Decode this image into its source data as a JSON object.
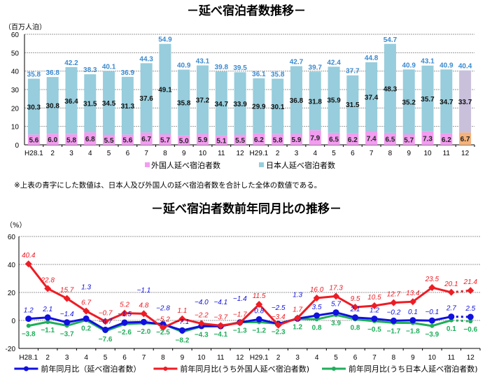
{
  "chart_data": [
    {
      "type": "bar",
      "stacked": true,
      "title": "－延べ宿泊者数推移－",
      "unit_label": "（百万人泊）",
      "ylim": [
        0,
        60
      ],
      "yticks": [
        0,
        10,
        20,
        30,
        40,
        50,
        60
      ],
      "grid": true,
      "legend_placement": "bottom",
      "categories": [
        "H28.1",
        "2",
        "3",
        "4",
        "5",
        "6",
        "7",
        "8",
        "9",
        "10",
        "11",
        "12",
        "H29.1",
        "2",
        "3",
        "4",
        "5",
        "6",
        "7",
        "8",
        "9",
        "10",
        "11",
        "12"
      ],
      "series": [
        {
          "name": "外国人延べ宿泊者数",
          "color": "#f39cf0",
          "values": [
            5.6,
            6.0,
            5.8,
            6.8,
            5.5,
            5.6,
            6.7,
            5.7,
            5.0,
            5.9,
            5.1,
            5.5,
            6.2,
            5.8,
            5.9,
            7.9,
            6.5,
            6.2,
            7.4,
            6.5,
            5.7,
            7.3,
            6.2,
            6.7
          ]
        },
        {
          "name": "日本人延べ宿泊者数",
          "color": "#97cddc",
          "values": [
            30.3,
            30.8,
            36.4,
            31.5,
            34.5,
            31.3,
            37.6,
            49.1,
            35.8,
            37.2,
            34.7,
            33.9,
            29.9,
            30.1,
            36.8,
            31.8,
            35.9,
            31.5,
            37.4,
            48.3,
            35.2,
            35.7,
            34.7,
            33.7
          ]
        }
      ],
      "totals": [
        35.8,
        36.8,
        42.2,
        38.3,
        40.1,
        36.9,
        44.3,
        54.9,
        40.9,
        43.1,
        39.8,
        39.5,
        36.1,
        35.8,
        42.7,
        39.7,
        42.4,
        37.7,
        44.8,
        54.7,
        40.9,
        43.1,
        40.9,
        40.4
      ],
      "total_label_color": "#3a8ad0",
      "last_bar_colors": {
        "foreign": "#f5b27a",
        "japanese": "#c9c0dc"
      },
      "note": "※上表の青字にした数値は、日本人及び外国人の延べ宿泊者数を合計した全体の数値である。"
    },
    {
      "type": "line",
      "title": "－延べ宿泊者数前年同月比の推移－",
      "unit_label": "（%）",
      "ylim": [
        -20,
        60
      ],
      "yticks": [
        -20,
        0,
        20,
        40,
        60
      ],
      "grid": true,
      "legend_placement": "bottom",
      "last_segment_dotted": true,
      "categories": [
        "H28.1",
        "2",
        "3",
        "4",
        "5",
        "6",
        "7",
        "8",
        "9",
        "10",
        "11",
        "12",
        "H29.1",
        "2",
        "3",
        "4",
        "5",
        "6",
        "7",
        "8",
        "9",
        "10",
        "11",
        "12"
      ],
      "series": [
        {
          "name": "前年同月比（延べ宿泊者数）",
          "color": "#1010e0",
          "values": [
            1.2,
            2.1,
            -1.4,
            1.3,
            -6.7,
            -1.5,
            -1.1,
            -2.8,
            -7.1,
            -4.0,
            -4.1,
            -1.4,
            0.8,
            -2.5,
            1.3,
            3.5,
            5.7,
            2.1,
            1.2,
            -0.2,
            0.1,
            -0.1,
            2.7,
            2.5
          ]
        },
        {
          "name": "前年同月比(うち外国人延べ宿泊者数)",
          "color": "#ee1c24",
          "values": [
            40.4,
            22.8,
            15.7,
            6.7,
            -0.7,
            5.2,
            4.8,
            -5.2,
            1.1,
            -2.2,
            -3.7,
            -1.7,
            11.5,
            -3.4,
            1.7,
            16.0,
            17.3,
            9.5,
            10.5,
            12.7,
            13.4,
            23.5,
            20.1,
            21.4
          ]
        },
        {
          "name": "前年同月比(うち日本人延べ宿泊者数)",
          "color": "#1fae5a",
          "values": [
            -3.8,
            -1.1,
            -3.7,
            0.2,
            -7.6,
            -2.6,
            -2.0,
            -2.5,
            -8.2,
            -4.3,
            -4.1,
            -1.3,
            -1.2,
            -2.3,
            1.2,
            0.8,
            3.9,
            0.8,
            -0.5,
            -1.7,
            -1.8,
            -3.9,
            0.1,
            -0.6
          ]
        }
      ]
    }
  ]
}
